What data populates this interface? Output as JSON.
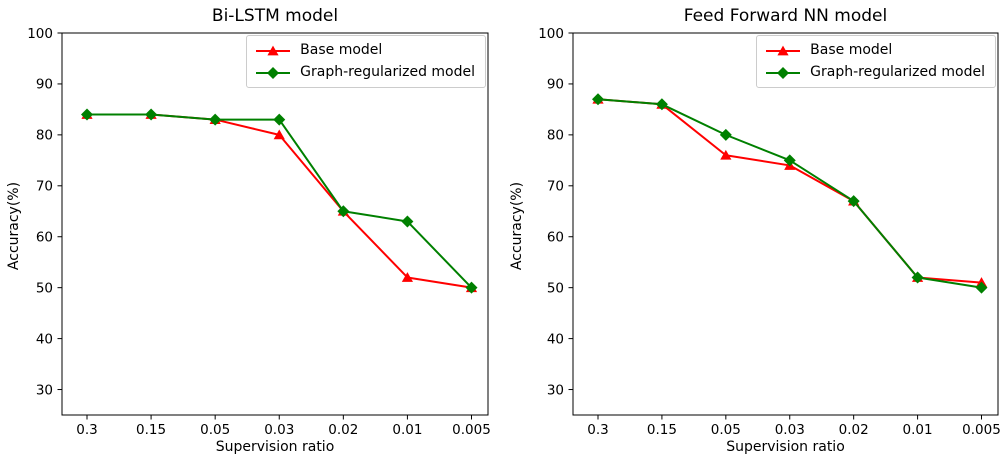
{
  "figure": {
    "background": "#ffffff",
    "axis_color": "#000000",
    "legend_border_color": "#cccccc"
  },
  "chart_data": [
    {
      "type": "line",
      "title": "Bi-LSTM model",
      "xlabel": "Supervision ratio",
      "ylabel": "Accuracy(%)",
      "categories": [
        "0.3",
        "0.15",
        "0.05",
        "0.03",
        "0.02",
        "0.01",
        "0.005"
      ],
      "yticks": [
        30,
        40,
        50,
        60,
        70,
        80,
        90,
        100
      ],
      "ylim": [
        25,
        100
      ],
      "grid": false,
      "legend_position": "upper right",
      "series": [
        {
          "name": "Base model",
          "color": "#ff0000",
          "marker": "triangle",
          "values": [
            84,
            84,
            83,
            80,
            65,
            52,
            50
          ]
        },
        {
          "name": "Graph-regularized model",
          "color": "#008000",
          "marker": "diamond",
          "values": [
            84,
            84,
            83,
            83,
            65,
            63,
            50
          ]
        }
      ]
    },
    {
      "type": "line",
      "title": "Feed Forward NN model",
      "xlabel": "Supervision ratio",
      "ylabel": "Accuracy(%)",
      "categories": [
        "0.3",
        "0.15",
        "0.05",
        "0.03",
        "0.02",
        "0.01",
        "0.005"
      ],
      "yticks": [
        30,
        40,
        50,
        60,
        70,
        80,
        90,
        100
      ],
      "ylim": [
        25,
        100
      ],
      "grid": false,
      "legend_position": "upper right",
      "series": [
        {
          "name": "Base model",
          "color": "#ff0000",
          "marker": "triangle",
          "values": [
            87,
            86,
            76,
            74,
            67,
            52,
            51
          ]
        },
        {
          "name": "Graph-regularized model",
          "color": "#008000",
          "marker": "diamond",
          "values": [
            87,
            86,
            80,
            75,
            67,
            52,
            50
          ]
        }
      ]
    }
  ]
}
